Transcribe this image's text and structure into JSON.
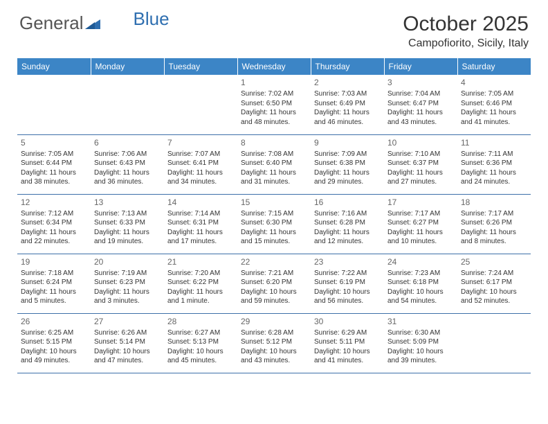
{
  "logo": {
    "text1": "General",
    "text2": "Blue"
  },
  "title": "October 2025",
  "location": "Campofiorito, Sicily, Italy",
  "colors": {
    "header_bg": "#3c85c6",
    "header_text": "#ffffff",
    "row_border": "#3c6fa8",
    "logo_gray": "#555555",
    "logo_blue": "#2f6fb0",
    "text": "#333333",
    "daynum": "#666666"
  },
  "weekdays": [
    "Sunday",
    "Monday",
    "Tuesday",
    "Wednesday",
    "Thursday",
    "Friday",
    "Saturday"
  ],
  "weeks": [
    [
      null,
      null,
      null,
      {
        "n": "1",
        "sr": "7:02 AM",
        "ss": "6:50 PM",
        "dl": "11 hours and 48 minutes."
      },
      {
        "n": "2",
        "sr": "7:03 AM",
        "ss": "6:49 PM",
        "dl": "11 hours and 46 minutes."
      },
      {
        "n": "3",
        "sr": "7:04 AM",
        "ss": "6:47 PM",
        "dl": "11 hours and 43 minutes."
      },
      {
        "n": "4",
        "sr": "7:05 AM",
        "ss": "6:46 PM",
        "dl": "11 hours and 41 minutes."
      }
    ],
    [
      {
        "n": "5",
        "sr": "7:05 AM",
        "ss": "6:44 PM",
        "dl": "11 hours and 38 minutes."
      },
      {
        "n": "6",
        "sr": "7:06 AM",
        "ss": "6:43 PM",
        "dl": "11 hours and 36 minutes."
      },
      {
        "n": "7",
        "sr": "7:07 AM",
        "ss": "6:41 PM",
        "dl": "11 hours and 34 minutes."
      },
      {
        "n": "8",
        "sr": "7:08 AM",
        "ss": "6:40 PM",
        "dl": "11 hours and 31 minutes."
      },
      {
        "n": "9",
        "sr": "7:09 AM",
        "ss": "6:38 PM",
        "dl": "11 hours and 29 minutes."
      },
      {
        "n": "10",
        "sr": "7:10 AM",
        "ss": "6:37 PM",
        "dl": "11 hours and 27 minutes."
      },
      {
        "n": "11",
        "sr": "7:11 AM",
        "ss": "6:36 PM",
        "dl": "11 hours and 24 minutes."
      }
    ],
    [
      {
        "n": "12",
        "sr": "7:12 AM",
        "ss": "6:34 PM",
        "dl": "11 hours and 22 minutes."
      },
      {
        "n": "13",
        "sr": "7:13 AM",
        "ss": "6:33 PM",
        "dl": "11 hours and 19 minutes."
      },
      {
        "n": "14",
        "sr": "7:14 AM",
        "ss": "6:31 PM",
        "dl": "11 hours and 17 minutes."
      },
      {
        "n": "15",
        "sr": "7:15 AM",
        "ss": "6:30 PM",
        "dl": "11 hours and 15 minutes."
      },
      {
        "n": "16",
        "sr": "7:16 AM",
        "ss": "6:28 PM",
        "dl": "11 hours and 12 minutes."
      },
      {
        "n": "17",
        "sr": "7:17 AM",
        "ss": "6:27 PM",
        "dl": "11 hours and 10 minutes."
      },
      {
        "n": "18",
        "sr": "7:17 AM",
        "ss": "6:26 PM",
        "dl": "11 hours and 8 minutes."
      }
    ],
    [
      {
        "n": "19",
        "sr": "7:18 AM",
        "ss": "6:24 PM",
        "dl": "11 hours and 5 minutes."
      },
      {
        "n": "20",
        "sr": "7:19 AM",
        "ss": "6:23 PM",
        "dl": "11 hours and 3 minutes."
      },
      {
        "n": "21",
        "sr": "7:20 AM",
        "ss": "6:22 PM",
        "dl": "11 hours and 1 minute."
      },
      {
        "n": "22",
        "sr": "7:21 AM",
        "ss": "6:20 PM",
        "dl": "10 hours and 59 minutes."
      },
      {
        "n": "23",
        "sr": "7:22 AM",
        "ss": "6:19 PM",
        "dl": "10 hours and 56 minutes."
      },
      {
        "n": "24",
        "sr": "7:23 AM",
        "ss": "6:18 PM",
        "dl": "10 hours and 54 minutes."
      },
      {
        "n": "25",
        "sr": "7:24 AM",
        "ss": "6:17 PM",
        "dl": "10 hours and 52 minutes."
      }
    ],
    [
      {
        "n": "26",
        "sr": "6:25 AM",
        "ss": "5:15 PM",
        "dl": "10 hours and 49 minutes."
      },
      {
        "n": "27",
        "sr": "6:26 AM",
        "ss": "5:14 PM",
        "dl": "10 hours and 47 minutes."
      },
      {
        "n": "28",
        "sr": "6:27 AM",
        "ss": "5:13 PM",
        "dl": "10 hours and 45 minutes."
      },
      {
        "n": "29",
        "sr": "6:28 AM",
        "ss": "5:12 PM",
        "dl": "10 hours and 43 minutes."
      },
      {
        "n": "30",
        "sr": "6:29 AM",
        "ss": "5:11 PM",
        "dl": "10 hours and 41 minutes."
      },
      {
        "n": "31",
        "sr": "6:30 AM",
        "ss": "5:09 PM",
        "dl": "10 hours and 39 minutes."
      },
      null
    ]
  ],
  "labels": {
    "sunrise": "Sunrise:",
    "sunset": "Sunset:",
    "daylight": "Daylight:"
  }
}
